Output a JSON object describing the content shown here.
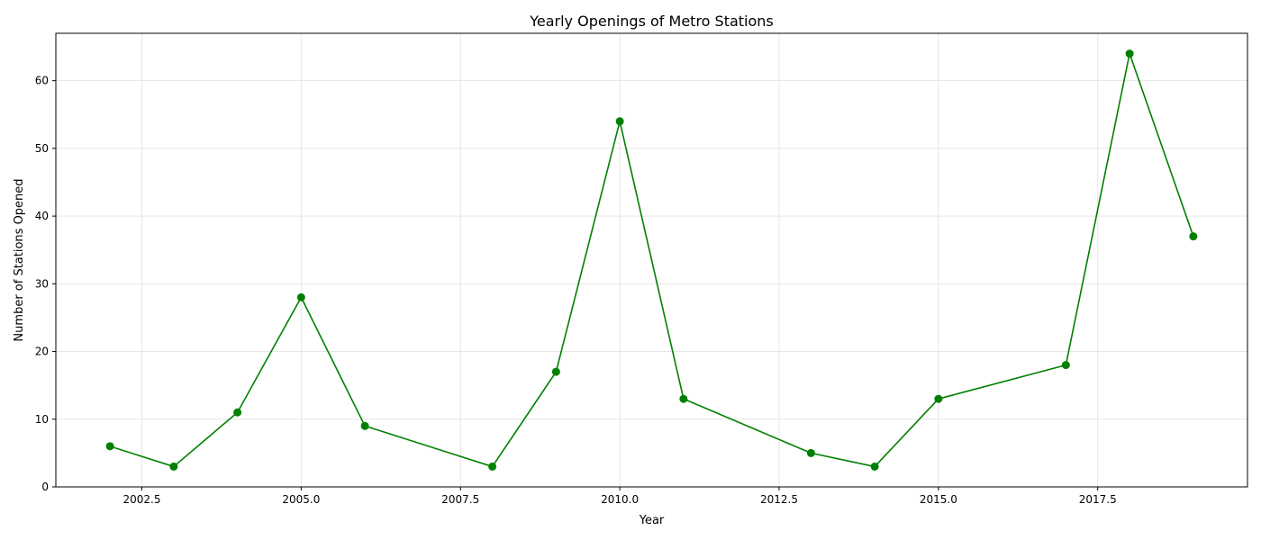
{
  "chart_data": {
    "type": "line",
    "title": "Yearly Openings of Metro Stations",
    "xlabel": "Year",
    "ylabel": "Number of Stations Opened",
    "xlim": [
      2001.15,
      2019.85
    ],
    "ylim": [
      0,
      67
    ],
    "xticks": [
      2002.5,
      2005.0,
      2007.5,
      2010.0,
      2012.5,
      2015.0,
      2017.5
    ],
    "xtick_labels": [
      "2002.5",
      "2005.0",
      "2007.5",
      "2010.0",
      "2012.5",
      "2015.0",
      "2017.5"
    ],
    "yticks": [
      0,
      10,
      20,
      30,
      40,
      50,
      60
    ],
    "ytick_labels": [
      "0",
      "10",
      "20",
      "30",
      "40",
      "50",
      "60"
    ],
    "grid": true,
    "color": "#008000",
    "series": [
      {
        "x": [
          2002,
          2003,
          2004,
          2005,
          2006,
          2008,
          2009,
          2010,
          2011,
          2013,
          2014,
          2015,
          2017,
          2018,
          2019
        ],
        "y": [
          6,
          3,
          11,
          28,
          9,
          3,
          17,
          54,
          13,
          5,
          3,
          13,
          18,
          64,
          37
        ]
      }
    ]
  }
}
